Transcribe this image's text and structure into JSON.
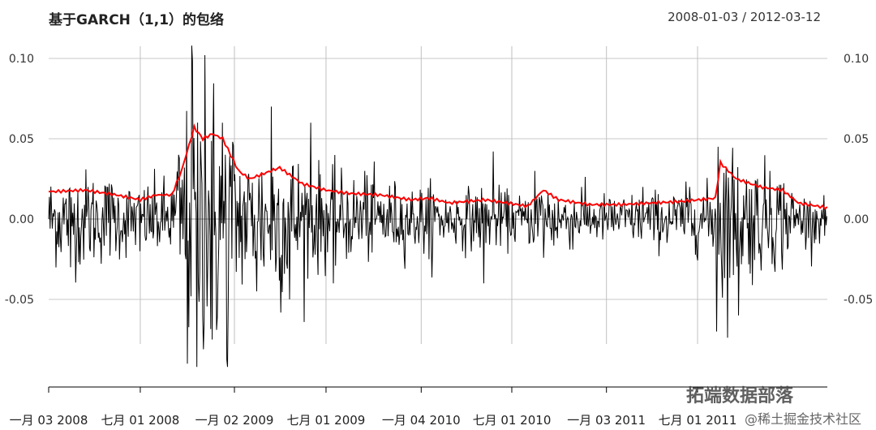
{
  "chart_data": {
    "type": "line",
    "title": "基于GARCH（1,1）的包络",
    "date_range": "2008-01-03 / 2012-03-12",
    "x_tick_labels": [
      "一月 03 2008",
      "七月 01 2008",
      "一月 02 2009",
      "七月 01 2009",
      "一月 04 2010",
      "七月 01 2010",
      "一月 03 2011",
      "七月 01 2011"
    ],
    "y_ticks": [
      0.1,
      0.05,
      0.0,
      -0.05
    ],
    "y_tick_labels": [
      "0.10",
      "0.05",
      "0.00",
      "-0.05"
    ],
    "ylim": [
      -0.095,
      0.11
    ],
    "xlim": [
      "2008-01-03",
      "2012-03-12"
    ],
    "grid": true,
    "series": [
      {
        "color": "#000000",
        "style": "vertical lines (spikes)",
        "points": [
          [
            "2008-01-03",
            0.0
          ],
          [
            "2008-02-15",
            -0.03
          ],
          [
            "2008-03-20",
            0.02
          ],
          [
            "2008-05-01",
            0.022
          ],
          [
            "2008-07-01",
            -0.02
          ],
          [
            "2008-08-15",
            0.015
          ],
          [
            "2008-09-15",
            0.04
          ],
          [
            "2008-10-01",
            -0.09
          ],
          [
            "2008-10-10",
            0.108
          ],
          [
            "2008-10-20",
            -0.092
          ],
          [
            "2008-11-05",
            0.102
          ],
          [
            "2008-11-20",
            -0.075
          ],
          [
            "2008-12-10",
            0.06
          ],
          [
            "2008-12-20",
            -0.092
          ],
          [
            "2009-02-15",
            -0.045
          ],
          [
            "2009-03-15",
            0.07
          ],
          [
            "2009-04-20",
            -0.05
          ],
          [
            "2009-06-01",
            0.06
          ],
          [
            "2009-07-15",
            -0.04
          ],
          [
            "2009-09-15",
            0.03
          ],
          [
            "2010-01-20",
            -0.025
          ],
          [
            "2010-05-07",
            -0.04
          ],
          [
            "2010-05-25",
            0.042
          ],
          [
            "2010-08-15",
            0.03
          ],
          [
            "2010-11-15",
            0.02
          ],
          [
            "2011-03-15",
            0.02
          ],
          [
            "2011-06-15",
            0.02
          ],
          [
            "2011-08-08",
            -0.07
          ],
          [
            "2011-08-10",
            0.045
          ],
          [
            "2011-09-20",
            -0.06
          ],
          [
            "2011-11-20",
            0.03
          ],
          [
            "2012-02-15",
            -0.015
          ],
          [
            "2012-03-12",
            0.005
          ]
        ]
      },
      {
        "color": "#ff0000",
        "style": "line",
        "points": [
          [
            "2008-01-03",
            0.017
          ],
          [
            "2008-03-15",
            0.018
          ],
          [
            "2008-05-15",
            0.015
          ],
          [
            "2008-07-01",
            0.012
          ],
          [
            "2008-08-01",
            0.015
          ],
          [
            "2008-09-01",
            0.015
          ],
          [
            "2008-09-20",
            0.03
          ],
          [
            "2008-10-15",
            0.057
          ],
          [
            "2008-11-01",
            0.05
          ],
          [
            "2008-11-20",
            0.053
          ],
          [
            "2008-12-10",
            0.05
          ],
          [
            "2009-01-10",
            0.03
          ],
          [
            "2009-02-01",
            0.025
          ],
          [
            "2009-03-15",
            0.03
          ],
          [
            "2009-04-01",
            0.032
          ],
          [
            "2009-05-15",
            0.022
          ],
          [
            "2009-07-01",
            0.018
          ],
          [
            "2009-08-15",
            0.016
          ],
          [
            "2009-10-15",
            0.015
          ],
          [
            "2009-12-15",
            0.012
          ],
          [
            "2010-01-20",
            0.013
          ],
          [
            "2010-03-01",
            0.01
          ],
          [
            "2010-05-10",
            0.012
          ],
          [
            "2010-06-01",
            0.011
          ],
          [
            "2010-08-01",
            0.008
          ],
          [
            "2010-09-01",
            0.018
          ],
          [
            "2010-10-01",
            0.012
          ],
          [
            "2010-12-01",
            0.009
          ],
          [
            "2011-02-01",
            0.009
          ],
          [
            "2011-04-01",
            0.01
          ],
          [
            "2011-06-01",
            0.011
          ],
          [
            "2011-08-05",
            0.013
          ],
          [
            "2011-08-15",
            0.035
          ],
          [
            "2011-09-15",
            0.025
          ],
          [
            "2011-11-01",
            0.02
          ],
          [
            "2011-12-15",
            0.018
          ],
          [
            "2012-01-15",
            0.01
          ],
          [
            "2012-03-12",
            0.007
          ]
        ]
      }
    ]
  },
  "watermark_main": "拓端数据部落",
  "watermark_sub": "@稀土掘金技术社区"
}
